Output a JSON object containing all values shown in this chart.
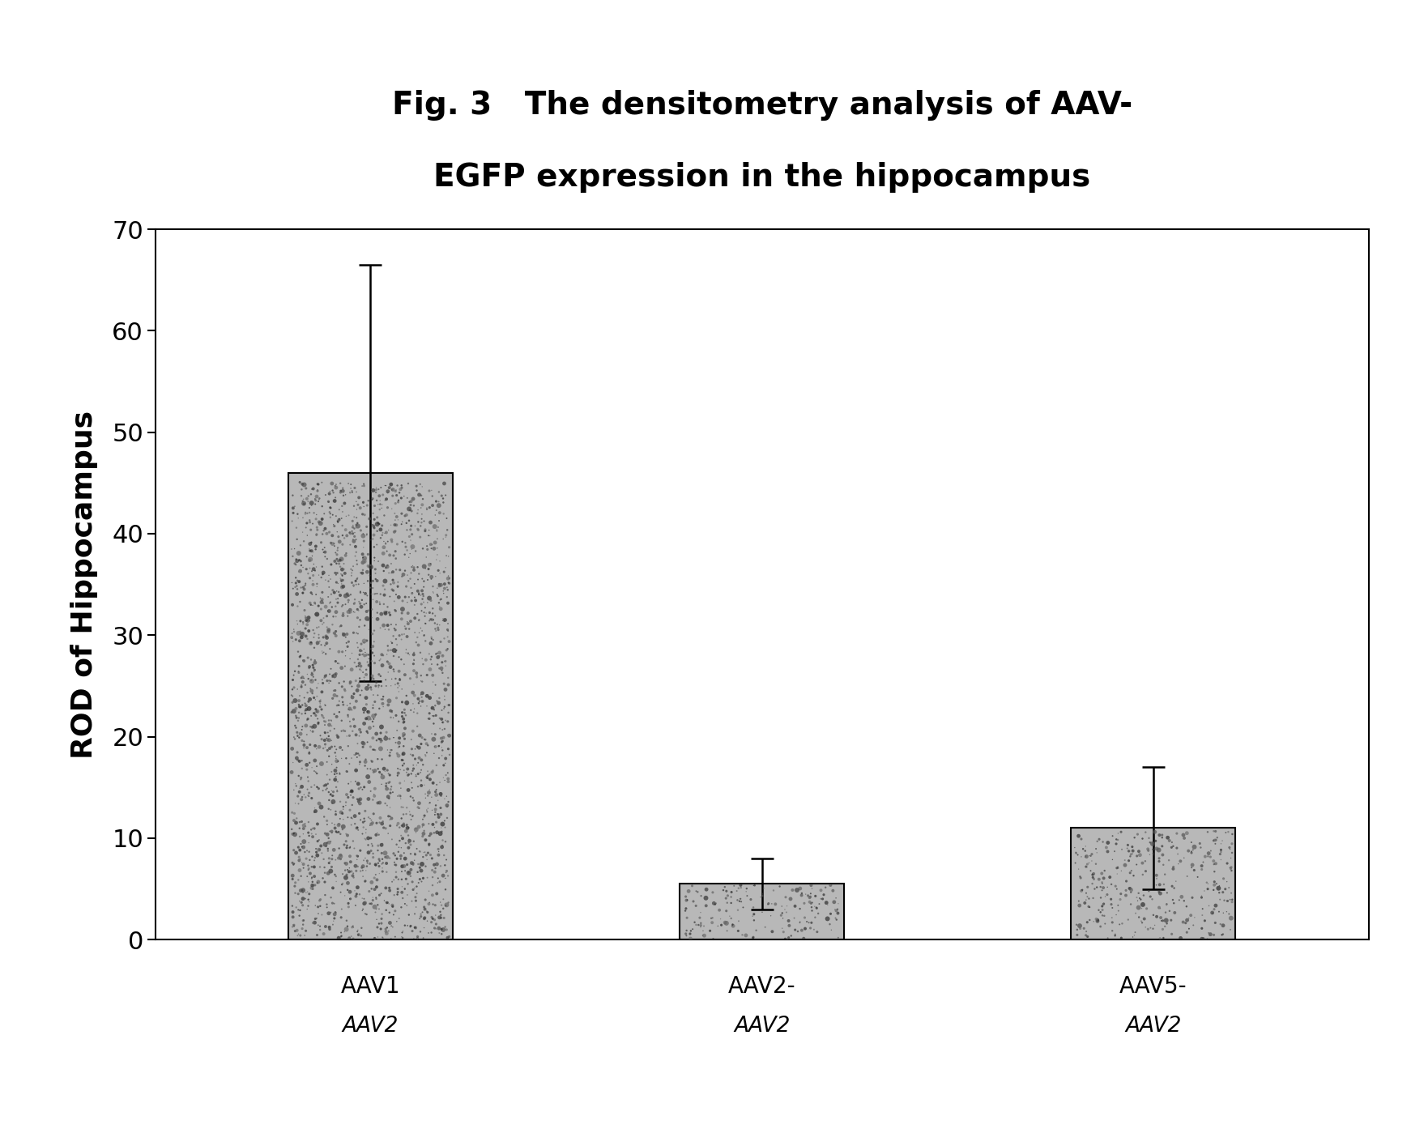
{
  "title_line1": "Fig. 3   The densitometry analysis of AAV-",
  "title_line2": "EGFP expression in the hippocampus",
  "ylabel": "ROD of Hippocampus",
  "tick_labels_top": [
    "AAV1",
    "AAV2-",
    "AAV5-"
  ],
  "tick_labels_bot": [
    "AAV2",
    "AAV2",
    "AAV2"
  ],
  "values": [
    46.0,
    5.5,
    11.0
  ],
  "errors": [
    20.5,
    2.5,
    6.0
  ],
  "ylim": [
    0,
    70
  ],
  "yticks": [
    0,
    10,
    20,
    30,
    40,
    50,
    60,
    70
  ],
  "bar_color": "#b8b8b8",
  "bar_edgecolor": "#000000",
  "background_color": "#ffffff",
  "bar_width": 0.42,
  "title_fontsize": 28,
  "ylabel_fontsize": 26,
  "tick_fontsize": 22,
  "xtick_fontsize": 20
}
